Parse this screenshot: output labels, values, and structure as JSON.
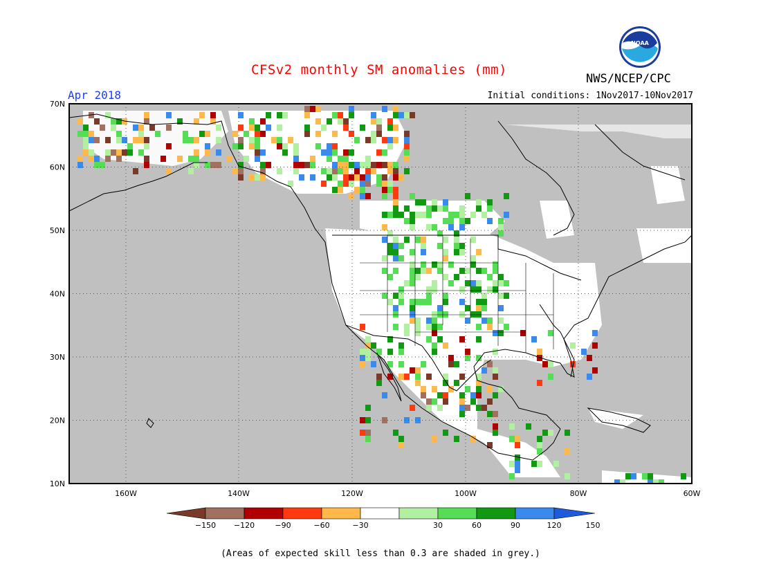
{
  "header": {
    "title": "CFSv2 monthly SM anomalies (mm)",
    "agency": "NWS/NCEP/CPC",
    "logo_text": "NOAA",
    "period": "Apr 2018",
    "initial_conditions": "Initial conditions: 1Nov2017-10Nov2017"
  },
  "map": {
    "lat_labels": [
      "70N",
      "60N",
      "50N",
      "40N",
      "30N",
      "20N",
      "10N"
    ],
    "lon_labels": [
      "160W",
      "140W",
      "120W",
      "100W",
      "80W",
      "60W"
    ],
    "extent": {
      "lon_min": -170,
      "lon_max": -60,
      "lat_min": 10,
      "lat_max": 70
    },
    "grey_meaning": "skill < 0.3"
  },
  "legend": {
    "ticks": [
      "-150",
      "-120",
      "-90",
      "-60",
      "-30",
      "30",
      "60",
      "90",
      "120",
      "150"
    ],
    "colors": [
      "#7a3a2a",
      "#a07060",
      "#b00000",
      "#ff3a10",
      "#ffb84a",
      "#ffffff",
      "#b0f0a0",
      "#55dd55",
      "#119911",
      "#3a8aee",
      "#1e5adc"
    ],
    "note": "(Areas of expected skill less than 0.3 are shaded in grey.)"
  },
  "colors": {
    "grey_mask": "#c0c0c0",
    "title_red": "#ff0000",
    "period_blue": "#1e3cff"
  }
}
